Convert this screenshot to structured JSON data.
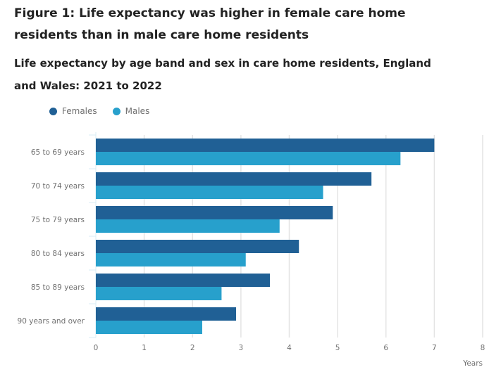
{
  "header": {
    "title": "Figure 1: Life expectancy was higher in female care home residents than in male care home residents",
    "subtitle": "Life expectancy by age band and sex in care home residents, England and Wales: 2021 to 2022"
  },
  "chart_data": {
    "type": "bar",
    "orientation": "horizontal",
    "title": "Life expectancy by age band and sex in care home residents, England and Wales: 2021 to 2022",
    "categories": [
      "65 to 69 years",
      "70 to 74 years",
      "75 to 79 years",
      "80 to 84 years",
      "85 to 89 years",
      "90 years and over"
    ],
    "series": [
      {
        "name": "Females",
        "color": "#206095",
        "values": [
          7.0,
          5.7,
          4.9,
          4.2,
          3.6,
          2.9
        ]
      },
      {
        "name": "Males",
        "color": "#27a0cc",
        "values": [
          6.3,
          4.7,
          3.8,
          3.1,
          2.6,
          2.2
        ]
      }
    ],
    "xlabel": "Years",
    "ylabel": "",
    "xlim": [
      0,
      8
    ],
    "xticks": [
      "0",
      "1",
      "2",
      "3",
      "4",
      "5",
      "6",
      "7",
      "8"
    ],
    "grid": true,
    "legend_position": "top-left"
  }
}
